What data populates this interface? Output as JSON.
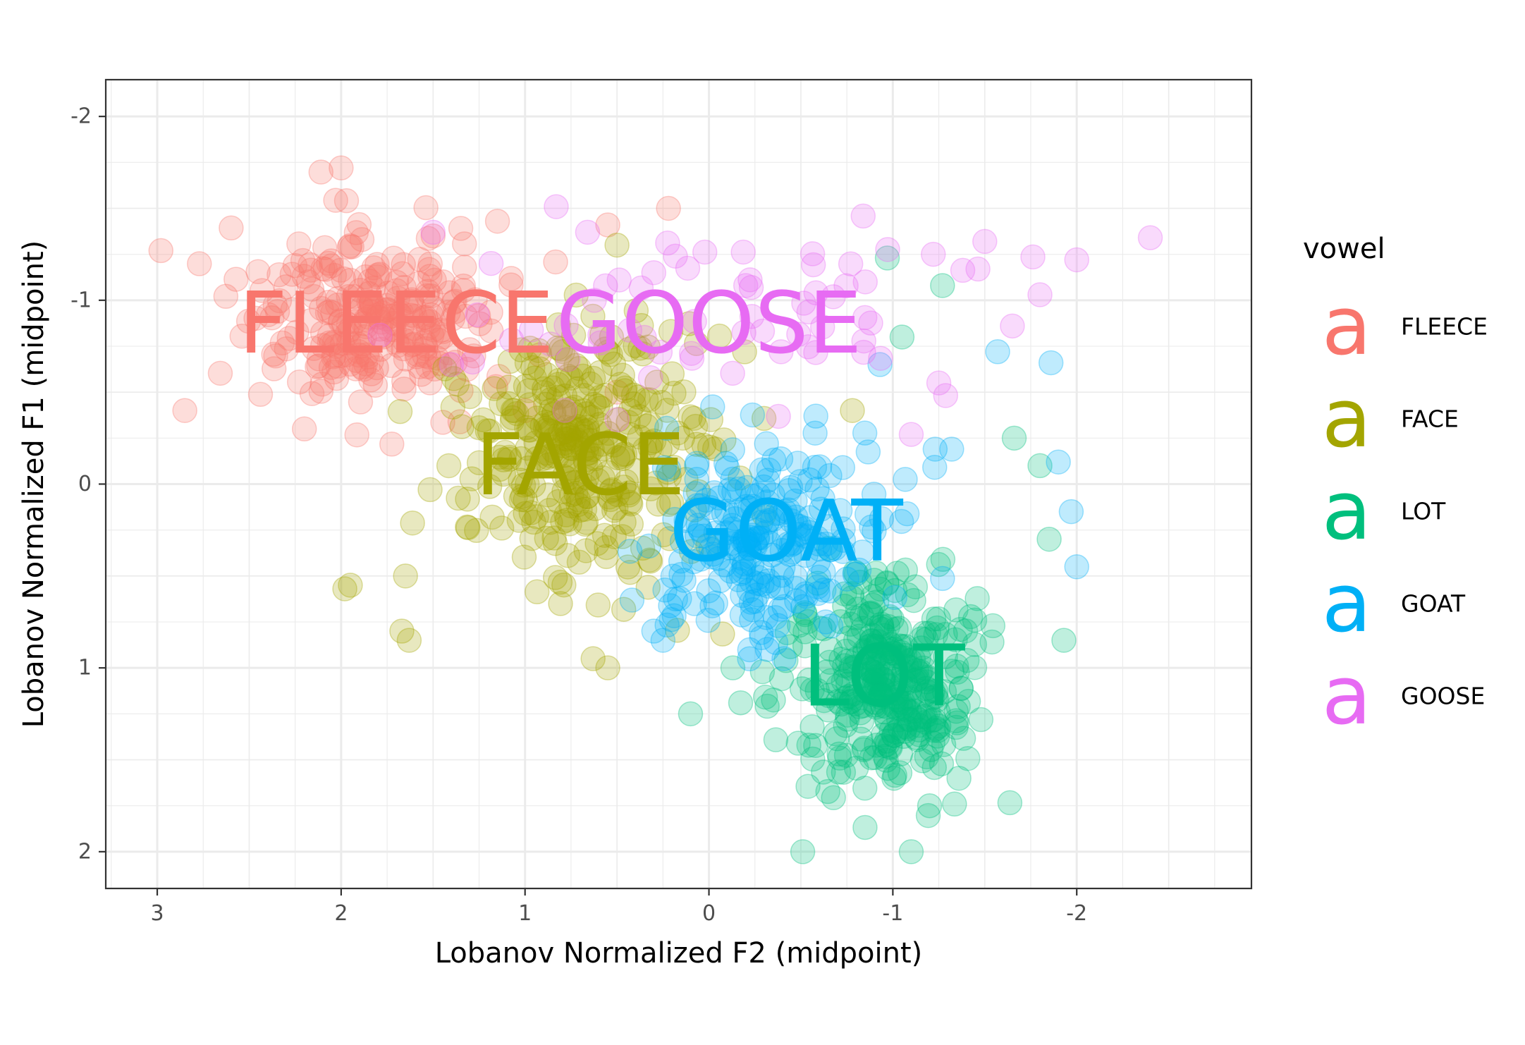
{
  "chart_data": {
    "type": "scatter",
    "title": "",
    "xlabel": "Lobanov Normalized F2 (midpoint)",
    "ylabel": "Lobanov Normalized F1 (midpoint)",
    "xlim": [
      3.28,
      -2.95
    ],
    "ylim": [
      -2.2,
      2.2
    ],
    "x_reversed": true,
    "y_reversed": true,
    "x_ticks": [
      3,
      2,
      1,
      0,
      -1,
      -2
    ],
    "y_ticks": [
      -2,
      -1,
      0,
      1,
      2
    ],
    "x_tick_labels": [
      "3",
      "2",
      "1",
      "0",
      "-1",
      "-2"
    ],
    "y_tick_labels": [
      "-2",
      "-1",
      "0",
      "1",
      "2"
    ],
    "grid": true,
    "legend": {
      "title": "vowel",
      "position": "right"
    },
    "series": [
      {
        "name": "FLEECE",
        "color": "#F8766D",
        "label_position": [
          1.7,
          -0.87
        ],
        "center": [
          1.8,
          -0.9
        ],
        "spread": [
          0.33,
          0.22
        ],
        "n": 260,
        "points": [
          [
            2.98,
            -1.27
          ],
          [
            2.0,
            -1.72
          ],
          [
            1.5,
            -1.35
          ],
          [
            1.15,
            -1.43
          ],
          [
            0.55,
            -1.41
          ],
          [
            0.22,
            -1.5
          ],
          [
            2.85,
            -0.4
          ],
          [
            2.2,
            -0.3
          ],
          [
            1.0,
            -0.4
          ],
          [
            0.5,
            -0.5
          ]
        ]
      },
      {
        "name": "FACE",
        "color": "#A3A500",
        "label_position": [
          0.7,
          -0.1
        ],
        "center": [
          0.7,
          -0.22
        ],
        "spread": [
          0.33,
          0.32
        ],
        "n": 330,
        "points": [
          [
            1.98,
            0.57
          ],
          [
            1.95,
            0.55
          ],
          [
            1.65,
            0.5
          ],
          [
            1.67,
            0.8
          ],
          [
            1.63,
            0.85
          ],
          [
            0.63,
            0.95
          ],
          [
            0.55,
            1.0
          ],
          [
            0.5,
            -1.3
          ],
          [
            0.2,
            -0.6
          ],
          [
            -0.78,
            -0.4
          ]
        ]
      },
      {
        "name": "LOT",
        "color": "#00BF7D",
        "label_position": [
          -0.95,
          1.05
        ],
        "center": [
          -0.95,
          1.1
        ],
        "spread": [
          0.26,
          0.3
        ],
        "n": 340,
        "points": [
          [
            -0.97,
            -1.23
          ],
          [
            -1.27,
            -1.08
          ],
          [
            -1.05,
            -0.8
          ],
          [
            -1.66,
            -0.25
          ],
          [
            -1.8,
            -0.1
          ],
          [
            -1.85,
            0.3
          ],
          [
            -1.93,
            0.85
          ],
          [
            -0.13,
            1.0
          ],
          [
            0.1,
            1.25
          ],
          [
            -0.51,
            2.0
          ],
          [
            -1.1,
            2.0
          ],
          [
            -1.2,
            1.75
          ]
        ]
      },
      {
        "name": "GOAT",
        "color": "#00B0F6",
        "label_position": [
          -0.42,
          0.26
        ],
        "center": [
          -0.3,
          0.3
        ],
        "spread": [
          0.28,
          0.25
        ],
        "n": 230,
        "points": [
          [
            -1.57,
            -0.72
          ],
          [
            -1.86,
            -0.66
          ],
          [
            -0.93,
            -0.65
          ],
          [
            -1.97,
            0.15
          ],
          [
            -1.9,
            -0.12
          ],
          [
            -2.0,
            0.45
          ],
          [
            -1.23,
            -0.19
          ],
          [
            -1.32,
            -0.19
          ],
          [
            -0.02,
            -0.42
          ],
          [
            0.3,
            0.8
          ],
          [
            0.25,
            0.85
          ]
        ]
      },
      {
        "name": "GOOSE",
        "color": "#E76BF3",
        "label_position": [
          0.0,
          -0.87
        ],
        "center": [
          -0.1,
          -0.9
        ],
        "spread": [
          0.7,
          0.3
        ],
        "n": 60,
        "points": [
          [
            1.5,
            -1.37
          ],
          [
            0.66,
            -1.37
          ],
          [
            -1.22,
            -1.25
          ],
          [
            -1.5,
            -1.32
          ],
          [
            -2.0,
            -1.22
          ],
          [
            -2.4,
            -1.34
          ],
          [
            -1.8,
            -1.03
          ],
          [
            -1.65,
            -0.86
          ],
          [
            -1.25,
            -0.55
          ],
          [
            -0.85,
            -1.1
          ],
          [
            -0.2,
            -1.08
          ],
          [
            0.3,
            -1.15
          ],
          [
            1.4,
            -0.65
          ],
          [
            -1.1,
            -0.27
          ],
          [
            0.5,
            -0.35
          ]
        ]
      }
    ]
  }
}
